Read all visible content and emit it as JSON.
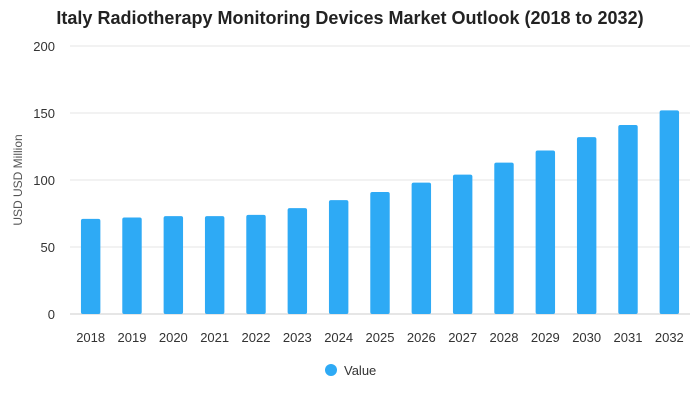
{
  "chart_data": {
    "type": "bar",
    "title": "Italy Radiotherapy Monitoring Devices Market Outlook (2018 to 2032)",
    "xlabel": "",
    "ylabel": "USD USD Million",
    "ylim": [
      0,
      200
    ],
    "yticks": [
      0,
      50,
      100,
      150,
      200
    ],
    "grid": true,
    "legend_position": "bottom-center",
    "categories": [
      "2018",
      "2019",
      "2020",
      "2021",
      "2022",
      "2023",
      "2024",
      "2025",
      "2026",
      "2027",
      "2028",
      "2029",
      "2030",
      "2031",
      "2032"
    ],
    "series": [
      {
        "name": "Value",
        "color": "#2eaaf5",
        "values": [
          71,
          72,
          73,
          73,
          74,
          79,
          85,
          91,
          98,
          104,
          113,
          122,
          132,
          141,
          152
        ]
      }
    ]
  }
}
